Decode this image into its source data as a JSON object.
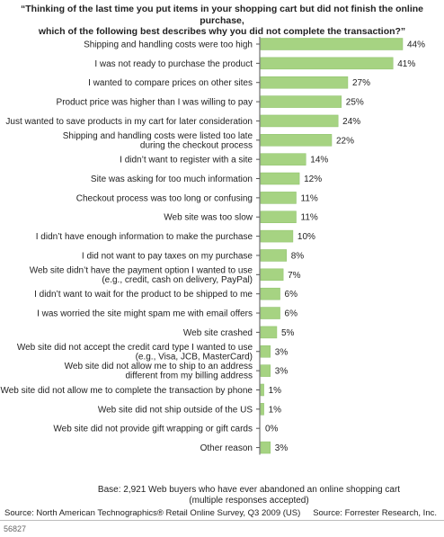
{
  "title_lines": [
    "“Thinking of the last time you put items in your shopping cart but did not finish the online purchase,",
    "which of the following best describes why you did not complete the transaction?”"
  ],
  "base_lines": [
    "Base: 2,921 Web buyers who have ever abandoned an online shopping cart",
    "(multiple responses accepted)"
  ],
  "source_text": "Source: North American Technographics® Retail Online Survey, Q3 2009 (US)",
  "credit_text": "Source: Forrester Research, Inc.",
  "figure_code": "56827",
  "colors": {
    "bar": "#a6d382",
    "bar_stroke": "#8cc06a",
    "axis": "#555555"
  },
  "chart_data": {
    "type": "bar",
    "orientation": "horizontal",
    "unit": "%",
    "xlim": [
      0,
      45
    ],
    "categories": [
      [
        "Shipping and handling costs were too high"
      ],
      [
        "I was not ready to purchase the product"
      ],
      [
        "I wanted to compare prices on other sites"
      ],
      [
        "Product price was higher than I was willing to pay"
      ],
      [
        "Just wanted to save products in my cart for later consideration"
      ],
      [
        "Shipping and handling costs were listed too late",
        "during the checkout process"
      ],
      [
        "I didn’t want to register with a site"
      ],
      [
        "Site was asking for too much information"
      ],
      [
        "Checkout process was too long or confusing"
      ],
      [
        "Web site was too slow"
      ],
      [
        "I didn’t have enough information to make the purchase"
      ],
      [
        "I did not want to pay taxes on my purchase"
      ],
      [
        "Web site didn’t have the payment option I wanted to use",
        "(e.g., credit, cash on delivery, PayPal)"
      ],
      [
        "I didn’t want to wait for the product to be shipped to me"
      ],
      [
        "I was worried the site might spam me with email offers"
      ],
      [
        "Web site crashed"
      ],
      [
        "Web site did not accept the credit card type I wanted to use",
        "(e.g., Visa, JCB, MasterCard)"
      ],
      [
        "Web site did not allow me to ship to an address",
        "different from my billing address"
      ],
      [
        "Web site did not allow me to complete the transaction by phone"
      ],
      [
        "Web site did not ship outside of the US"
      ],
      [
        "Web site did not provide gift wrapping or gift cards"
      ],
      [
        "Other reason"
      ]
    ],
    "values": [
      44,
      41,
      27,
      25,
      24,
      22,
      14,
      12,
      11,
      11,
      10,
      8,
      7,
      6,
      6,
      5,
      3,
      3,
      1,
      1,
      0,
      3
    ],
    "data_labels": [
      "44%",
      "41%",
      "27%",
      "25%",
      "24%",
      "22%",
      "14%",
      "12%",
      "11%",
      "11%",
      "10%",
      "8%",
      "7%",
      "6%",
      "6%",
      "5%",
      "3%",
      "3%",
      "1%",
      "1%",
      "0%",
      "3%"
    ]
  }
}
